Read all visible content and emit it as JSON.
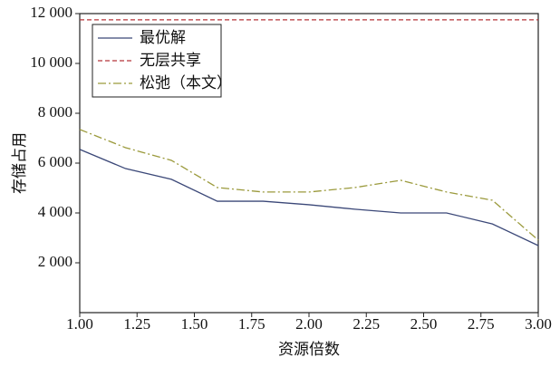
{
  "chart_data": {
    "type": "line",
    "x_label": "资源倍数",
    "y_label": "存储占用",
    "x": [
      1.0,
      1.2,
      1.4,
      1.6,
      1.8,
      2.0,
      2.2,
      2.4,
      2.6,
      2.8,
      3.0
    ],
    "series": [
      {
        "name": "最优解",
        "color": "#3b4878",
        "style": "solid",
        "values": [
          6550,
          5780,
          5350,
          4470,
          4470,
          4330,
          4150,
          4000,
          4000,
          3560,
          2690
        ]
      },
      {
        "name": "无层共享",
        "color": "#b5353a",
        "style": "dashed",
        "values": [
          11750,
          11750,
          11750,
          11750,
          11750,
          11750,
          11750,
          11750,
          11750,
          11750,
          11750
        ]
      },
      {
        "name": "松弛（本文）",
        "color": "#9b9a3c",
        "style": "dashdot",
        "values": [
          7350,
          6620,
          6110,
          5020,
          4840,
          4840,
          5020,
          5310,
          4840,
          4510,
          2910
        ]
      }
    ],
    "xlim": [
      1.0,
      3.0
    ],
    "xticks": [
      {
        "value": 1.0,
        "label": "1.00"
      },
      {
        "value": 1.25,
        "label": "1.25"
      },
      {
        "value": 1.5,
        "label": "1.50"
      },
      {
        "value": 1.75,
        "label": "1.75"
      },
      {
        "value": 2.0,
        "label": "2.00"
      },
      {
        "value": 2.25,
        "label": "2.25"
      },
      {
        "value": 2.5,
        "label": "2.50"
      },
      {
        "value": 2.75,
        "label": "2.75"
      },
      {
        "value": 3.0,
        "label": "3.00"
      }
    ],
    "ylim": [
      0,
      12000
    ],
    "yticks": [
      {
        "value": 2000,
        "label": "2 000"
      },
      {
        "value": 4000,
        "label": "4 000"
      },
      {
        "value": 6000,
        "label": "6 000"
      },
      {
        "value": 8000,
        "label": "8 000"
      },
      {
        "value": 10000,
        "label": "10 000"
      },
      {
        "value": 12000,
        "label": "12 000"
      }
    ],
    "legend": "upper left",
    "grid": false
  }
}
